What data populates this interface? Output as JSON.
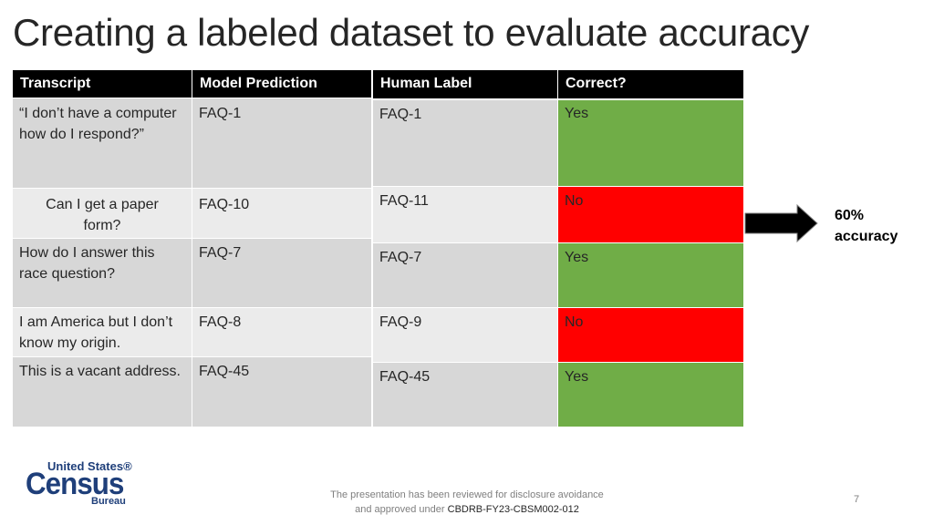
{
  "title": "Creating a labeled dataset to evaluate accuracy",
  "table": {
    "headers": [
      "Transcript",
      "Model Prediction",
      "Human Label",
      "Correct?"
    ],
    "left_rows": [
      {
        "transcript": "“I don’t have a computer how do I respond?”",
        "prediction": "FAQ-1"
      },
      {
        "transcript": "Can I get a paper form?",
        "prediction": "FAQ-10"
      },
      {
        "transcript": "How do I answer this race question?",
        "prediction": "FAQ-7"
      },
      {
        "transcript": "I am America but I don’t know my origin.",
        "prediction": "FAQ-8"
      },
      {
        "transcript": "This is a vacant address.",
        "prediction": "FAQ-45"
      }
    ],
    "right_rows": [
      {
        "label": "FAQ-1",
        "correct": "Yes"
      },
      {
        "label": "FAQ-11",
        "correct": "No"
      },
      {
        "label": "FAQ-7",
        "correct": "Yes"
      },
      {
        "label": "FAQ-9",
        "correct": "No"
      },
      {
        "label": "FAQ-45",
        "correct": "Yes"
      }
    ]
  },
  "colors": {
    "correct": "#70ad47",
    "incorrect": "#ff0000",
    "header": "#000000"
  },
  "accuracy": {
    "value": "60%",
    "label": "accuracy"
  },
  "logo": {
    "top": "United States®",
    "main": "Census",
    "bottom": "Bureau"
  },
  "footer": {
    "line1": "The presentation has been reviewed for disclosure avoidance",
    "line2_prefix": "and approved under ",
    "line2_code": "CBDRB-FY23-CBSM002-012"
  },
  "page_number": "7"
}
